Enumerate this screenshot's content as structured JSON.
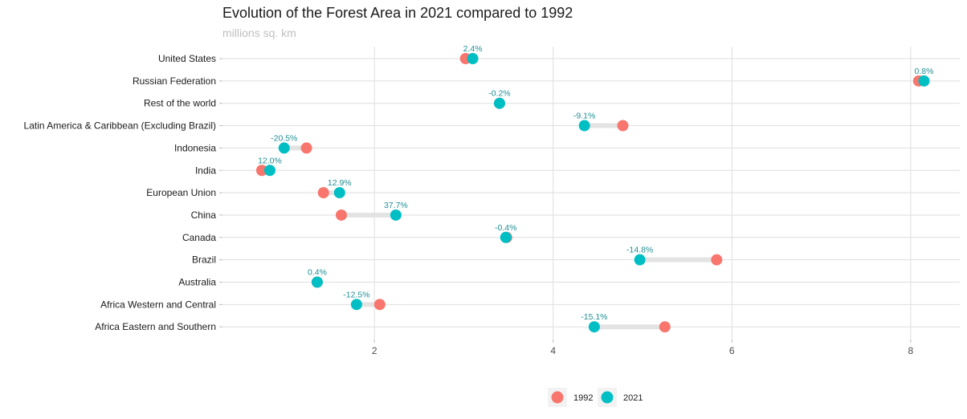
{
  "chart_data": {
    "type": "dumbbell",
    "title": "Evolution of the Forest Area in 2021 compared to 1992",
    "subtitle": "millions sq. km",
    "xticks": [
      2,
      4,
      6,
      8
    ],
    "xlim": [
      0.3,
      8.55
    ],
    "grid": true,
    "legend_position": "bottom",
    "series": [
      {
        "name": "1992",
        "color": "#F8766D"
      },
      {
        "name": "2021",
        "color": "#00BFC4"
      }
    ],
    "rows": [
      {
        "country": "United States",
        "v1992": 3.02,
        "v2021": 3.1,
        "label": "2.4%"
      },
      {
        "country": "Russian Federation",
        "v1992": 8.09,
        "v2021": 8.15,
        "label": "0.8%"
      },
      {
        "country": "Rest of the world",
        "v1992": 3.4,
        "v2021": 3.4,
        "label": "-0.2%"
      },
      {
        "country": "Latin America & Caribbean (Excluding Brazil)",
        "v1992": 4.78,
        "v2021": 4.35,
        "label": "-9.1%"
      },
      {
        "country": "Indonesia",
        "v1992": 1.24,
        "v2021": 0.99,
        "label": "-20.5%"
      },
      {
        "country": "India",
        "v1992": 0.74,
        "v2021": 0.83,
        "label": "12.0%"
      },
      {
        "country": "European Union",
        "v1992": 1.43,
        "v2021": 1.61,
        "label": "12.9%"
      },
      {
        "country": "China",
        "v1992": 1.63,
        "v2021": 2.24,
        "label": "37.7%"
      },
      {
        "country": "Canada",
        "v1992": 3.48,
        "v2021": 3.47,
        "label": "-0.4%"
      },
      {
        "country": "Brazil",
        "v1992": 5.83,
        "v2021": 4.97,
        "label": "-14.8%"
      },
      {
        "country": "Australia",
        "v1992": 1.36,
        "v2021": 1.36,
        "label": "0.4%"
      },
      {
        "country": "Africa Western and Central",
        "v1992": 2.06,
        "v2021": 1.8,
        "label": "-12.5%"
      },
      {
        "country": "Africa Eastern and Southern",
        "v1992": 5.25,
        "v2021": 4.46,
        "label": "-15.1%"
      }
    ]
  }
}
